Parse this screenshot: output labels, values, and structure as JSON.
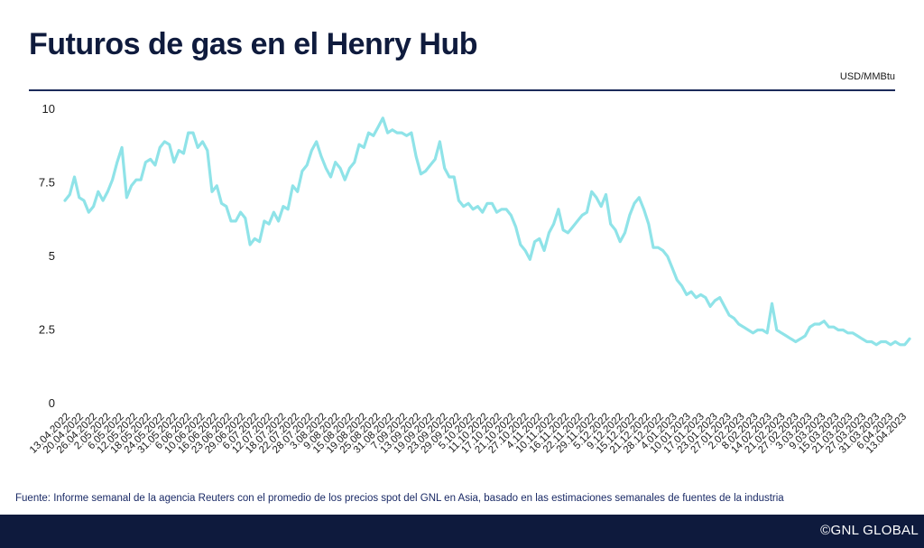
{
  "header": {
    "title": "Futuros de gas en el Henry Hub",
    "unit": "USD/MMBtu"
  },
  "footer": {
    "source": "Fuente: Informe semanal de la agencia Reuters con el promedio de los precios spot del GNL en Asia, basado en las estimaciones semanales de fuentes de la industria",
    "brand": "©GNL GLOBAL"
  },
  "colors": {
    "line": "#8fe3e8",
    "navy": "#0e1a3d",
    "text": "#1a1a1a"
  },
  "chart_data": {
    "type": "line",
    "title": "Futuros de gas en el Henry Hub",
    "ylabel": "USD/MMBtu",
    "ylim": [
      0,
      10
    ],
    "yticks": [
      0,
      2.5,
      5,
      7.5,
      10
    ],
    "ytick_labels": [
      "0",
      "2.5",
      "5",
      "7.5",
      "10"
    ],
    "grid": false,
    "xtick_labels": [
      "13.04.2022",
      "20.04.2022",
      "26.04.2022",
      "2.05.2022",
      "6.05.2022",
      "12.05.2022",
      "18.05.2022",
      "24.05.2022",
      "31.05.2022",
      "6.06.2022",
      "10.06.2022",
      "16.06.2022",
      "23.06.2022",
      "29.06.2022",
      "6.07.2022",
      "12.07.2022",
      "18.07.2022",
      "22.07.2022",
      "28.07.2022",
      "3.08.2022",
      "9.08.2022",
      "15.08.2022",
      "19.08.2022",
      "25.08.2022",
      "31.08.2022",
      "7.09.2022",
      "13.09.2022",
      "19.09.2022",
      "23.09.2022",
      "29.09.2022",
      "5.10.2022",
      "11.10.2022",
      "17.10.2022",
      "21.10.2022",
      "27.10.2022",
      "4.11.2022",
      "10.11.2022",
      "16.11.2022",
      "22.11.2022",
      "29.11.2022",
      "5.12.2022",
      "9.12.2022",
      "15.12.2022",
      "21.12.2022",
      "28.12.2022",
      "4.01.2023",
      "10.01.2023",
      "17.01.2023",
      "23.01.2023",
      "27.01.2023",
      "2.02.2023",
      "8.02.2023",
      "14.02.2023",
      "21.02.2023",
      "27.02.2023",
      "3.03.2023",
      "9.03.2023",
      "15.03.2023",
      "21.03.2023",
      "27.03.2023",
      "31.03.2023",
      "6.04.2023",
      "13.04.2023"
    ],
    "series": [
      {
        "values": [
          6.9,
          7.1,
          7.7,
          7.0,
          6.9,
          6.5,
          6.7,
          7.2,
          6.9,
          7.2,
          7.6,
          8.2,
          8.7,
          7.0,
          7.4,
          7.6,
          7.6,
          8.2,
          8.3,
          8.1,
          8.7,
          8.9,
          8.8,
          8.2,
          8.6,
          8.5,
          9.2,
          9.2,
          8.7,
          8.9,
          8.6,
          7.2,
          7.4,
          6.8,
          6.7,
          6.2,
          6.2,
          6.5,
          6.3,
          5.4,
          5.6,
          5.5,
          6.2,
          6.1,
          6.5,
          6.2,
          6.7,
          6.6,
          7.4,
          7.2,
          7.9,
          8.1,
          8.6,
          8.9,
          8.4,
          8.0,
          7.7,
          8.2,
          8.0,
          7.6,
          8.0,
          8.2,
          8.8,
          8.7,
          9.2,
          9.1,
          9.4,
          9.7,
          9.2,
          9.3,
          9.2,
          9.2,
          9.1,
          9.2,
          8.4,
          7.8,
          7.9,
          8.1,
          8.3,
          8.9,
          8.0,
          7.7,
          7.7,
          6.9,
          6.7,
          6.8,
          6.6,
          6.7,
          6.5,
          6.8,
          6.8,
          6.5,
          6.6,
          6.6,
          6.4,
          6.0,
          5.4,
          5.2,
          4.9,
          5.5,
          5.6,
          5.2,
          5.8,
          6.1,
          6.6,
          5.9,
          5.8,
          6.0,
          6.2,
          6.4,
          6.5,
          7.2,
          7.0,
          6.7,
          7.1,
          6.1,
          5.9,
          5.5,
          5.8,
          6.4,
          6.8,
          7.0,
          6.6,
          6.1,
          5.3,
          5.3,
          5.2,
          5.0,
          4.6,
          4.2,
          4.0,
          3.7,
          3.8,
          3.6,
          3.7,
          3.6,
          3.3,
          3.5,
          3.6,
          3.3,
          3.0,
          2.9,
          2.7,
          2.6,
          2.5,
          2.4,
          2.5,
          2.5,
          2.4,
          3.4,
          2.5,
          2.4,
          2.3,
          2.2,
          2.1,
          2.2,
          2.3,
          2.6,
          2.7,
          2.7,
          2.8,
          2.6,
          2.6,
          2.5,
          2.5,
          2.4,
          2.4,
          2.3,
          2.2,
          2.1,
          2.1,
          2.0,
          2.1,
          2.1,
          2.0,
          2.1,
          2.0,
          2.0,
          2.2
        ]
      }
    ]
  }
}
